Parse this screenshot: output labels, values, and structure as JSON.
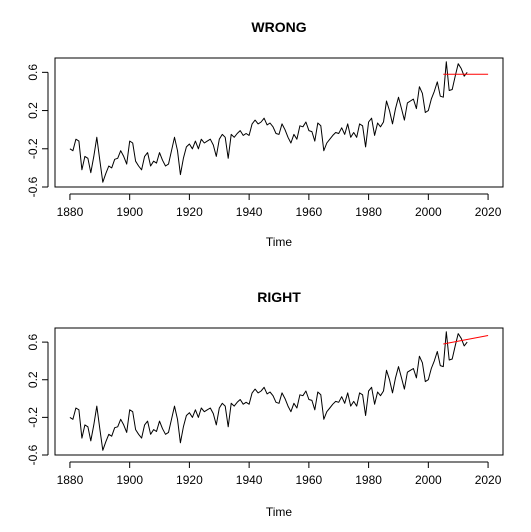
{
  "chart_data": [
    {
      "type": "line",
      "title": "WRONG",
      "xlabel": "Time",
      "ylabel": "",
      "xlim": [
        1875,
        2025
      ],
      "ylim": [
        -0.6,
        0.75
      ],
      "xticks": [
        1880,
        1900,
        1920,
        1940,
        1960,
        1980,
        2000,
        2020
      ],
      "yticks": [
        -0.6,
        -0.2,
        0.2,
        0.6
      ],
      "ytick_labels": [
        "-0.6",
        "-0.2",
        "0.2",
        "0.6"
      ],
      "grid": false,
      "legend": "none",
      "series": [
        {
          "color": "#000000",
          "x_start": 1880,
          "values": [
            -0.2,
            -0.22,
            -0.1,
            -0.12,
            -0.42,
            -0.28,
            -0.3,
            -0.45,
            -0.28,
            -0.08,
            -0.32,
            -0.55,
            -0.46,
            -0.38,
            -0.4,
            -0.31,
            -0.3,
            -0.22,
            -0.28,
            -0.36,
            -0.12,
            -0.14,
            -0.33,
            -0.38,
            -0.42,
            -0.28,
            -0.24,
            -0.38,
            -0.33,
            -0.35,
            -0.24,
            -0.32,
            -0.38,
            -0.36,
            -0.22,
            -0.08,
            -0.22,
            -0.47,
            -0.3,
            -0.18,
            -0.15,
            -0.2,
            -0.12,
            -0.2,
            -0.1,
            -0.14,
            -0.12,
            -0.1,
            -0.16,
            -0.28,
            -0.1,
            -0.05,
            -0.08,
            -0.3,
            -0.05,
            -0.08,
            -0.04,
            -0.01,
            -0.06,
            -0.04,
            -0.06,
            0.06,
            0.1,
            0.06,
            0.08,
            0.12,
            0.05,
            0.07,
            0.03,
            -0.04,
            -0.05,
            0.06,
            0.0,
            -0.08,
            -0.14,
            -0.05,
            -0.1,
            0.04,
            0.03,
            0.08,
            -0.01,
            -0.02,
            -0.12,
            0.07,
            0.04,
            -0.22,
            -0.14,
            -0.1,
            -0.06,
            -0.03,
            -0.04,
            0.02,
            -0.05,
            0.06,
            -0.08,
            -0.03,
            -0.08,
            0.06,
            0.04,
            -0.18,
            0.08,
            0.12,
            -0.06,
            0.07,
            0.03,
            0.08,
            0.3,
            0.2,
            0.06,
            0.22,
            0.34,
            0.22,
            0.1,
            0.28,
            0.3,
            0.32,
            0.22,
            0.45,
            0.38,
            0.18,
            0.2,
            0.32,
            0.4,
            0.5,
            0.35,
            0.34,
            0.71,
            0.41,
            0.42,
            0.56,
            0.69,
            0.64,
            0.56,
            0.6
          ]
        },
        {
          "color": "#ff0000",
          "x": [
            2005,
            2020
          ],
          "values": [
            0.58,
            0.58
          ]
        }
      ]
    },
    {
      "type": "line",
      "title": "RIGHT",
      "xlabel": "Time",
      "ylabel": "",
      "xlim": [
        1875,
        2025
      ],
      "ylim": [
        -0.6,
        0.75
      ],
      "xticks": [
        1880,
        1900,
        1920,
        1940,
        1960,
        1980,
        2000,
        2020
      ],
      "yticks": [
        -0.6,
        -0.2,
        0.2,
        0.6
      ],
      "ytick_labels": [
        "-0.6",
        "-0.2",
        "0.2",
        "0.6"
      ],
      "grid": false,
      "legend": "none",
      "series": [
        {
          "color": "#000000",
          "x_start": 1880,
          "values": [
            -0.2,
            -0.22,
            -0.1,
            -0.12,
            -0.42,
            -0.28,
            -0.3,
            -0.45,
            -0.28,
            -0.08,
            -0.32,
            -0.55,
            -0.46,
            -0.38,
            -0.4,
            -0.31,
            -0.3,
            -0.22,
            -0.28,
            -0.36,
            -0.12,
            -0.14,
            -0.33,
            -0.38,
            -0.42,
            -0.28,
            -0.24,
            -0.38,
            -0.33,
            -0.35,
            -0.24,
            -0.32,
            -0.38,
            -0.36,
            -0.22,
            -0.08,
            -0.22,
            -0.47,
            -0.3,
            -0.18,
            -0.15,
            -0.2,
            -0.12,
            -0.2,
            -0.1,
            -0.14,
            -0.12,
            -0.1,
            -0.16,
            -0.28,
            -0.1,
            -0.05,
            -0.08,
            -0.3,
            -0.05,
            -0.08,
            -0.04,
            -0.01,
            -0.06,
            -0.04,
            -0.06,
            0.06,
            0.1,
            0.06,
            0.08,
            0.12,
            0.05,
            0.07,
            0.03,
            -0.04,
            -0.05,
            0.06,
            0.0,
            -0.08,
            -0.14,
            -0.05,
            -0.1,
            0.04,
            0.03,
            0.08,
            -0.01,
            -0.02,
            -0.12,
            0.07,
            0.04,
            -0.22,
            -0.14,
            -0.1,
            -0.06,
            -0.03,
            -0.04,
            0.02,
            -0.05,
            0.06,
            -0.08,
            -0.03,
            -0.08,
            0.06,
            0.04,
            -0.18,
            0.08,
            0.12,
            -0.06,
            0.07,
            0.03,
            0.08,
            0.3,
            0.2,
            0.06,
            0.22,
            0.34,
            0.22,
            0.1,
            0.28,
            0.3,
            0.32,
            0.22,
            0.45,
            0.38,
            0.18,
            0.2,
            0.32,
            0.4,
            0.5,
            0.35,
            0.34,
            0.71,
            0.41,
            0.42,
            0.56,
            0.69,
            0.64,
            0.56,
            0.6
          ]
        },
        {
          "color": "#ff0000",
          "x": [
            2005,
            2020
          ],
          "values": [
            0.58,
            0.67
          ]
        }
      ]
    }
  ]
}
